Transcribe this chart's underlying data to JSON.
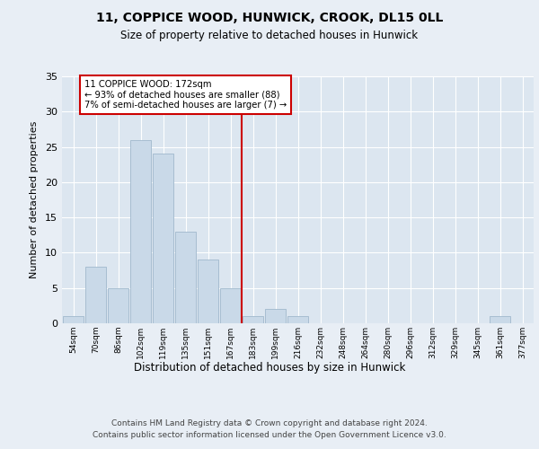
{
  "title1": "11, COPPICE WOOD, HUNWICK, CROOK, DL15 0LL",
  "title2": "Size of property relative to detached houses in Hunwick",
  "xlabel": "Distribution of detached houses by size in Hunwick",
  "ylabel": "Number of detached properties",
  "bar_labels": [
    "54sqm",
    "70sqm",
    "86sqm",
    "102sqm",
    "119sqm",
    "135sqm",
    "151sqm",
    "167sqm",
    "183sqm",
    "199sqm",
    "216sqm",
    "232sqm",
    "248sqm",
    "264sqm",
    "280sqm",
    "296sqm",
    "312sqm",
    "329sqm",
    "345sqm",
    "361sqm",
    "377sqm"
  ],
  "bar_values": [
    1,
    8,
    5,
    26,
    24,
    13,
    9,
    5,
    1,
    2,
    1,
    0,
    0,
    0,
    0,
    0,
    0,
    0,
    0,
    1,
    0
  ],
  "bar_color": "#c9d9e8",
  "bar_edgecolor": "#a0b8cc",
  "vline_index": 7,
  "vline_color": "#cc0000",
  "annotation_title": "11 COPPICE WOOD: 172sqm",
  "annotation_line1": "← 93% of detached houses are smaller (88)",
  "annotation_line2": "7% of semi-detached houses are larger (7) →",
  "annotation_box_color": "#cc0000",
  "ylim": [
    0,
    35
  ],
  "yticks": [
    0,
    5,
    10,
    15,
    20,
    25,
    30,
    35
  ],
  "bg_color": "#e8eef5",
  "plot_bg_color": "#dce6f0",
  "footer1": "Contains HM Land Registry data © Crown copyright and database right 2024.",
  "footer2": "Contains public sector information licensed under the Open Government Licence v3.0."
}
